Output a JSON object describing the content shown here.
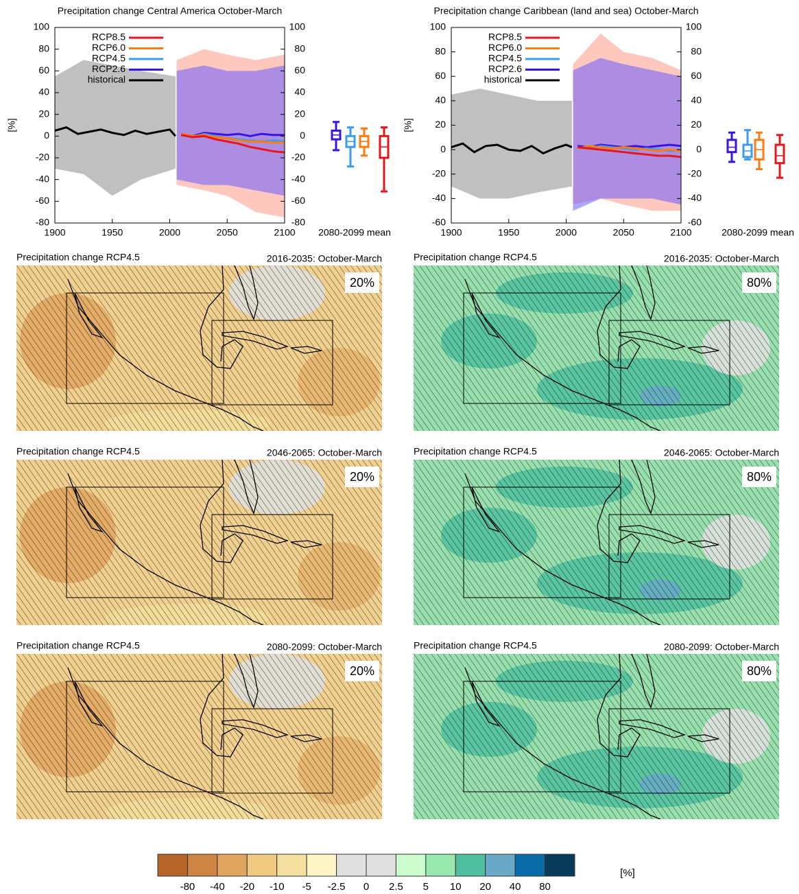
{
  "chart_data": [
    {
      "type": "line",
      "title": "Precipitation change Central America October-March",
      "ylabel": "[%]",
      "box_label": "2080-2099 mean",
      "xlim": [
        1900,
        2100
      ],
      "xticks": [
        1900,
        1950,
        2000,
        2050,
        2100
      ],
      "ylim": [
        -80,
        100
      ],
      "yticks": [
        -80,
        -60,
        -40,
        -20,
        0,
        20,
        40,
        60,
        80,
        100
      ],
      "y2lim": [
        -80,
        100
      ],
      "y2ticks": [
        -80,
        -60,
        -40,
        -20,
        0,
        20,
        40,
        60,
        80,
        100
      ],
      "envelopes": [
        {
          "color": "#8c8c8c",
          "x": [
            1900,
            1925,
            1950,
            1975,
            2005
          ],
          "lower": [
            -30,
            -35,
            -55,
            -40,
            -30
          ],
          "upper": [
            55,
            70,
            65,
            60,
            55
          ]
        },
        {
          "color": "#ff9a8a",
          "x": [
            2006,
            2030,
            2050,
            2075,
            2100
          ],
          "lower": [
            -45,
            -50,
            -55,
            -70,
            -75
          ],
          "upper": [
            70,
            80,
            75,
            70,
            75
          ]
        },
        {
          "color": "#6a5cff",
          "x": [
            2006,
            2030,
            2050,
            2075,
            2100
          ],
          "lower": [
            -40,
            -45,
            -45,
            -50,
            -55
          ],
          "upper": [
            60,
            65,
            60,
            60,
            65
          ]
        }
      ],
      "series": [
        {
          "name": "RCP8.5",
          "color": "#e8141c",
          "x": [
            2010,
            2020,
            2030,
            2040,
            2050,
            2060,
            2070,
            2080,
            2090,
            2100
          ],
          "values": [
            1,
            -1,
            0,
            -3,
            -5,
            -7,
            -10,
            -12,
            -14,
            -15
          ]
        },
        {
          "name": "RCP6.0",
          "color": "#ff7a10",
          "x": [
            2010,
            2020,
            2030,
            2040,
            2050,
            2060,
            2070,
            2080,
            2090,
            2100
          ],
          "values": [
            2,
            0,
            1,
            -1,
            -2,
            -4,
            -5,
            -5,
            -6,
            -6
          ]
        },
        {
          "name": "RCP4.5",
          "color": "#3a9cf0",
          "x": [
            2010,
            2020,
            2030,
            2040,
            2050,
            2060,
            2070,
            2080,
            2090,
            2100
          ],
          "values": [
            1,
            -1,
            2,
            0,
            -2,
            -3,
            -4,
            -5,
            -4,
            -5
          ]
        },
        {
          "name": "RCP2.6",
          "color": "#3a14e0",
          "x": [
            2010,
            2020,
            2030,
            2040,
            2050,
            2060,
            2070,
            2080,
            2090,
            2100
          ],
          "values": [
            2,
            0,
            3,
            2,
            1,
            2,
            0,
            2,
            1,
            1
          ]
        },
        {
          "name": "historical",
          "color": "#000000",
          "x": [
            1900,
            1910,
            1920,
            1930,
            1940,
            1950,
            1960,
            1970,
            1980,
            1990,
            2000,
            2005
          ],
          "values": [
            5,
            8,
            2,
            4,
            6,
            3,
            1,
            5,
            2,
            4,
            6,
            0
          ]
        }
      ],
      "boxes": [
        {
          "color": "#3a14e0",
          "values": [
            -13,
            -3,
            1,
            5,
            13
          ]
        },
        {
          "color": "#3a9cf0",
          "values": [
            -28,
            -10,
            -5,
            0,
            8
          ]
        },
        {
          "color": "#ff7a10",
          "values": [
            -18,
            -10,
            -5,
            0,
            7
          ]
        },
        {
          "color": "#e8141c",
          "values": [
            -51,
            -20,
            -10,
            0,
            8
          ]
        }
      ]
    },
    {
      "type": "line",
      "title": "Precipitation change Caribbean (land and sea) October-March",
      "ylabel": "[%]",
      "box_label": "2080-2099 mean",
      "xlim": [
        1900,
        2100
      ],
      "xticks": [
        1900,
        1950,
        2000,
        2050,
        2100
      ],
      "ylim": [
        -60,
        100
      ],
      "yticks": [
        -60,
        -40,
        -20,
        0,
        20,
        40,
        60,
        80,
        100
      ],
      "y2lim": [
        -60,
        100
      ],
      "y2ticks": [
        -60,
        -40,
        -20,
        0,
        20,
        40,
        60,
        80,
        100
      ],
      "envelopes": [
        {
          "color": "#8c8c8c",
          "x": [
            1900,
            1925,
            1950,
            1975,
            2005
          ],
          "lower": [
            -30,
            -40,
            -40,
            -35,
            -30
          ],
          "upper": [
            45,
            50,
            45,
            40,
            40
          ]
        },
        {
          "color": "#ff9a8a",
          "x": [
            2006,
            2030,
            2050,
            2075,
            2100
          ],
          "lower": [
            -45,
            -40,
            -45,
            -50,
            -50
          ],
          "upper": [
            70,
            95,
            80,
            75,
            65
          ]
        },
        {
          "color": "#6a5cff",
          "x": [
            2006,
            2030,
            2050,
            2075,
            2100
          ],
          "lower": [
            -50,
            -40,
            -40,
            -40,
            -45
          ],
          "upper": [
            65,
            75,
            70,
            65,
            60
          ]
        }
      ],
      "series": [
        {
          "name": "RCP8.5",
          "color": "#e8141c",
          "x": [
            2010,
            2020,
            2030,
            2040,
            2050,
            2060,
            2070,
            2080,
            2090,
            2100
          ],
          "values": [
            2,
            1,
            0,
            -1,
            -2,
            -3,
            -4,
            -5,
            -5,
            -6
          ]
        },
        {
          "name": "RCP6.0",
          "color": "#ff7a10",
          "x": [
            2010,
            2020,
            2030,
            2040,
            2050,
            2060,
            2070,
            2080,
            2090,
            2100
          ],
          "values": [
            1,
            3,
            2,
            1,
            2,
            1,
            0,
            -1,
            0,
            -1
          ]
        },
        {
          "name": "RCP4.5",
          "color": "#3a9cf0",
          "x": [
            2010,
            2020,
            2030,
            2040,
            2050,
            2060,
            2070,
            2080,
            2090,
            2100
          ],
          "values": [
            2,
            1,
            3,
            2,
            1,
            0,
            1,
            0,
            -1,
            0
          ]
        },
        {
          "name": "RCP2.6",
          "color": "#3a14e0",
          "x": [
            2010,
            2020,
            2030,
            2040,
            2050,
            2060,
            2070,
            2080,
            2090,
            2100
          ],
          "values": [
            3,
            2,
            4,
            3,
            2,
            3,
            2,
            3,
            4,
            3
          ]
        },
        {
          "name": "historical",
          "color": "#000000",
          "x": [
            1900,
            1910,
            1920,
            1930,
            1940,
            1950,
            1960,
            1970,
            1980,
            1990,
            2000,
            2005
          ],
          "values": [
            2,
            5,
            -2,
            3,
            4,
            0,
            -1,
            3,
            -3,
            1,
            4,
            2
          ]
        }
      ],
      "boxes": [
        {
          "color": "#3a14e0",
          "values": [
            -10,
            -2,
            2,
            8,
            14
          ]
        },
        {
          "color": "#3a9cf0",
          "values": [
            -8,
            -6,
            -1,
            4,
            16
          ]
        },
        {
          "color": "#ff7a10",
          "values": [
            -16,
            -8,
            0,
            8,
            14
          ]
        },
        {
          "color": "#e8141c",
          "values": [
            -23,
            -11,
            -5,
            4,
            12
          ]
        }
      ]
    }
  ],
  "maps": [
    {
      "title": "Precipitation change RCP4.5",
      "period": "2016-2035: October-March",
      "percentile": "20%"
    },
    {
      "title": "Precipitation change RCP4.5",
      "period": "2016-2035: October-March",
      "percentile": "80%"
    },
    {
      "title": "Precipitation change RCP4.5",
      "period": "2046-2065: October-March",
      "percentile": "20%"
    },
    {
      "title": "Precipitation change RCP4.5",
      "period": "2046-2065: October-March",
      "percentile": "80%"
    },
    {
      "title": "Precipitation change RCP4.5",
      "period": "2080-2099: October-March",
      "percentile": "20%"
    },
    {
      "title": "Precipitation change RCP4.5",
      "period": "2080-2099: October-March",
      "percentile": "80%"
    }
  ],
  "colorbar": {
    "unit": "[%]",
    "colors": [
      "#b5652a",
      "#cd8443",
      "#e0a660",
      "#f2c980",
      "#f5df9e",
      "#fdf5c5",
      "#e0e0e0",
      "#e0e0e0",
      "#cdfccd",
      "#98e8b0",
      "#4fbf9f",
      "#6aa8c8",
      "#0a6aa8",
      "#083a5a"
    ],
    "ticks": [
      -80,
      -40,
      -20,
      -10,
      -5,
      -2.5,
      0,
      2.5,
      5,
      10,
      20,
      40,
      80
    ]
  }
}
